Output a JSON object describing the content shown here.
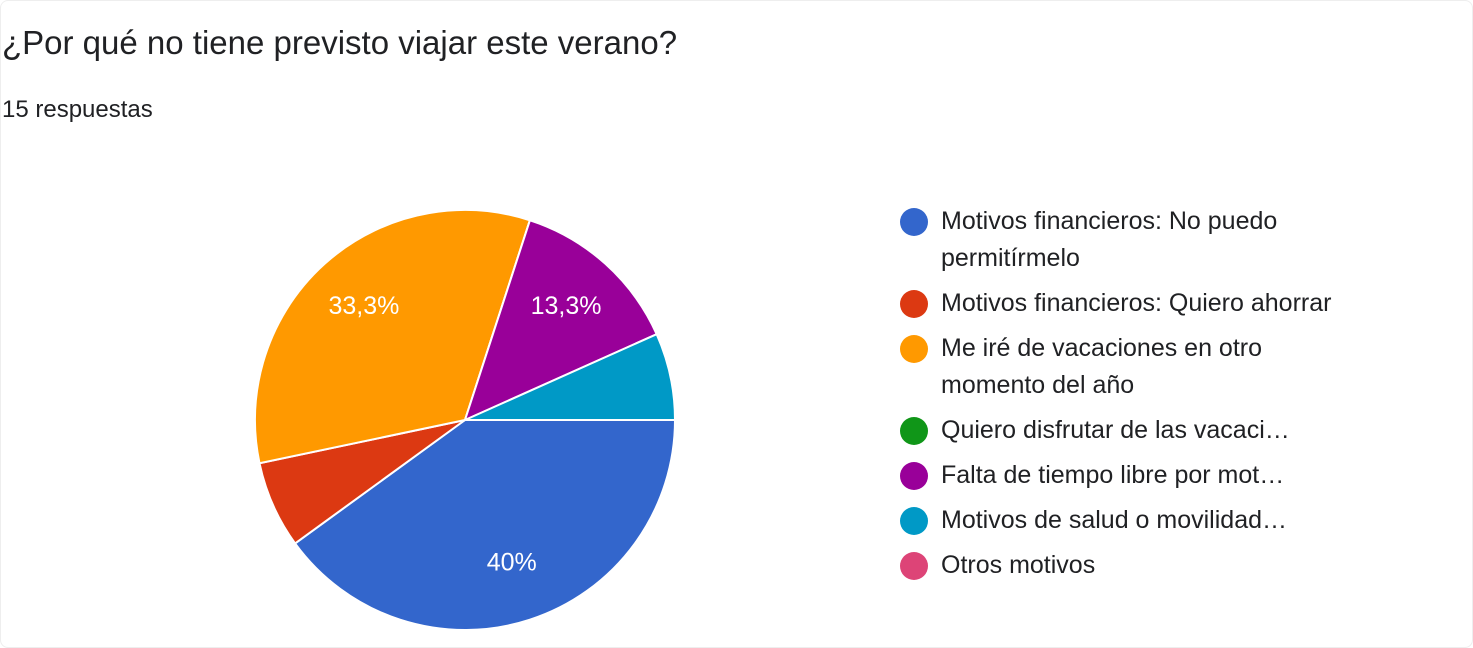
{
  "chart_data": {
    "type": "pie",
    "title": "¿Por qué no tiene previsto viajar este verano?",
    "subtitle": "15 respuestas",
    "categories": [
      "Motivos financieros: No puedo permitírmelo",
      "Motivos financieros: Quiero ahorrar",
      "Me iré de vacaciones en otro momento del año",
      "Quiero disfrutar de las vacaci…",
      "Falta de tiempo libre por mot…",
      "Motivos de salud o movilidad…",
      "Otros motivos"
    ],
    "values": [
      40,
      6.7,
      33.3,
      0,
      13.3,
      6.7,
      0
    ],
    "value_labels": [
      "40%",
      null,
      "33,3%",
      null,
      "13,3%",
      null,
      null
    ],
    "colors": [
      "#3366cc",
      "#dc3912",
      "#ff9900",
      "#109618",
      "#990099",
      "#0099c6",
      "#dd4477"
    ]
  }
}
